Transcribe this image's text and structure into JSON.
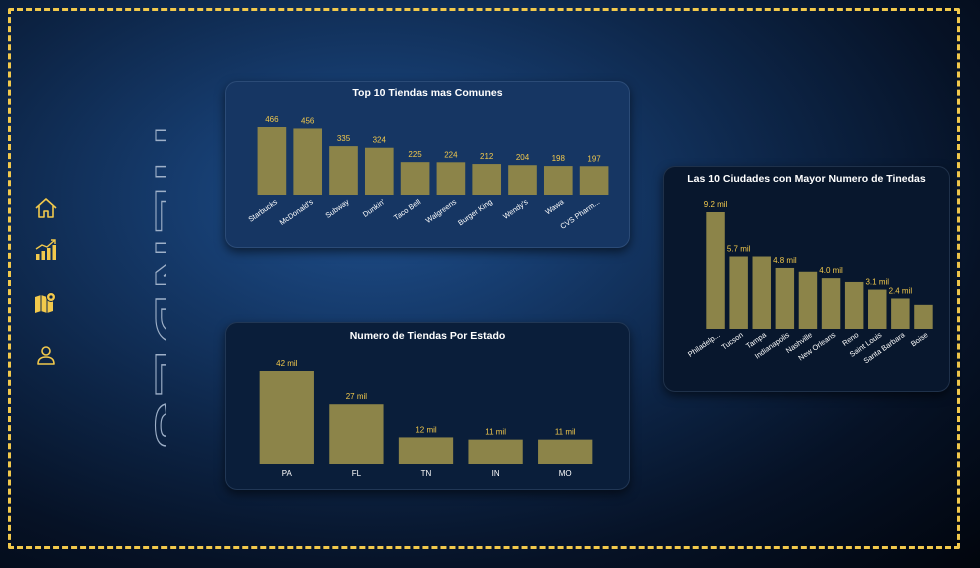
{
  "brand": {
    "title": "TIENDES"
  },
  "nav": [
    {
      "name": "home-icon",
      "label": "Inicio"
    },
    {
      "name": "chart-icon",
      "label": "Estadisticas"
    },
    {
      "name": "map-icon",
      "label": "Mapa"
    },
    {
      "name": "user-icon",
      "label": "Perfil"
    }
  ],
  "colors": {
    "bar": "#8c8449",
    "value_label": "#f2c94c",
    "accent": "#f2c94c",
    "title": "#ffffff"
  },
  "chart_data": [
    {
      "id": "top10",
      "type": "bar",
      "title": "Top 10 Tiendas mas Comunes",
      "categories": [
        "Starbucks",
        "McDonald's",
        "Subway",
        "Dunkin'",
        "Taco Bell",
        "Walgreens",
        "Burger King",
        "Wendy's",
        "Wawa",
        "CVS Pharm..."
      ],
      "values": [
        466,
        456,
        335,
        324,
        225,
        224,
        212,
        204,
        198,
        197
      ],
      "labels": [
        "466",
        "456",
        "335",
        "324",
        "225",
        "224",
        "212",
        "204",
        "198",
        "197"
      ],
      "ylim": [
        0,
        466
      ],
      "xlabel": "",
      "ylabel": "",
      "grid": false
    },
    {
      "id": "states",
      "type": "bar",
      "title": "Numero de Tiendas Por Estado",
      "categories": [
        "PA",
        "FL",
        "TN",
        "IN",
        "MO"
      ],
      "values": [
        42000,
        27000,
        12000,
        11000,
        11000
      ],
      "labels": [
        "42 mil",
        "27 mil",
        "12 mil",
        "11 mil",
        "11 mil"
      ],
      "ylim": [
        0,
        42000
      ],
      "xlabel": "",
      "ylabel": "",
      "grid": false
    },
    {
      "id": "cities",
      "type": "bar",
      "title": "Las 10 Ciudades con Mayor Numero de Tinedas",
      "categories": [
        "Philadelp...",
        "Tucson",
        "Tampa",
        "Indianapolis",
        "Nashville",
        "New Orleans",
        "Reno",
        "Saint Louis",
        "Santa Barbara",
        "Boise"
      ],
      "values": [
        9200,
        5700,
        5700,
        4800,
        4500,
        4000,
        3700,
        3100,
        2400,
        1900
      ],
      "labels": [
        "9.2 mil",
        "5.7 mil",
        "",
        "4.8 mil",
        "",
        "4.0 mil",
        "",
        "3.1 mil",
        "2.4 mil",
        ""
      ],
      "ylim": [
        0,
        9200
      ],
      "xlabel": "",
      "ylabel": "",
      "grid": false
    }
  ]
}
